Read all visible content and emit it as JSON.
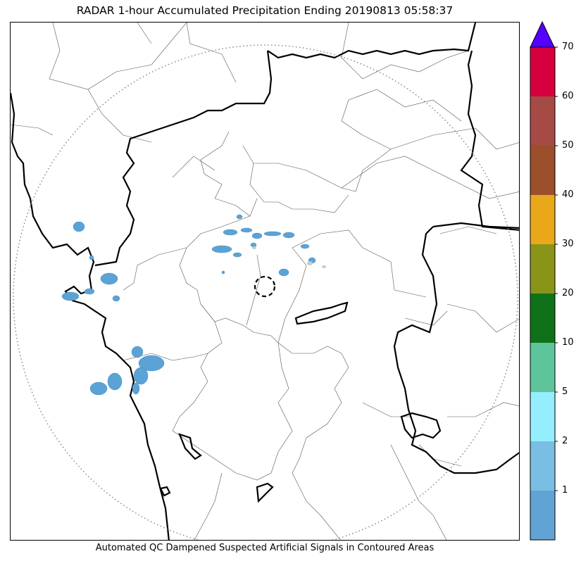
{
  "title": "RADAR 1-hour Accumulated Precipitation Ending 20190813 05:58:37",
  "caption": "Automated QC Dampened Suspected Artificial Signals in Contoured Areas",
  "map": {
    "range_ring_style": "dotted-grey",
    "precip_color": "#5ba3d6"
  },
  "colorbar": {
    "extend": "max",
    "over_color": "#5500ff",
    "levels": [
      {
        "label": "",
        "color": "#62a3d6"
      },
      {
        "label": "1",
        "color": "#79bfe3"
      },
      {
        "label": "2",
        "color": "#94eefe"
      },
      {
        "label": "5",
        "color": "#5ec49c"
      },
      {
        "label": "10",
        "color": "#0f7219"
      },
      {
        "label": "20",
        "color": "#8a9419"
      },
      {
        "label": "30",
        "color": "#e8a81a"
      },
      {
        "label": "40",
        "color": "#9b4f2a"
      },
      {
        "label": "50",
        "color": "#a64a46"
      },
      {
        "label": "60",
        "color": "#d6003f"
      }
    ],
    "top_label": "70"
  }
}
